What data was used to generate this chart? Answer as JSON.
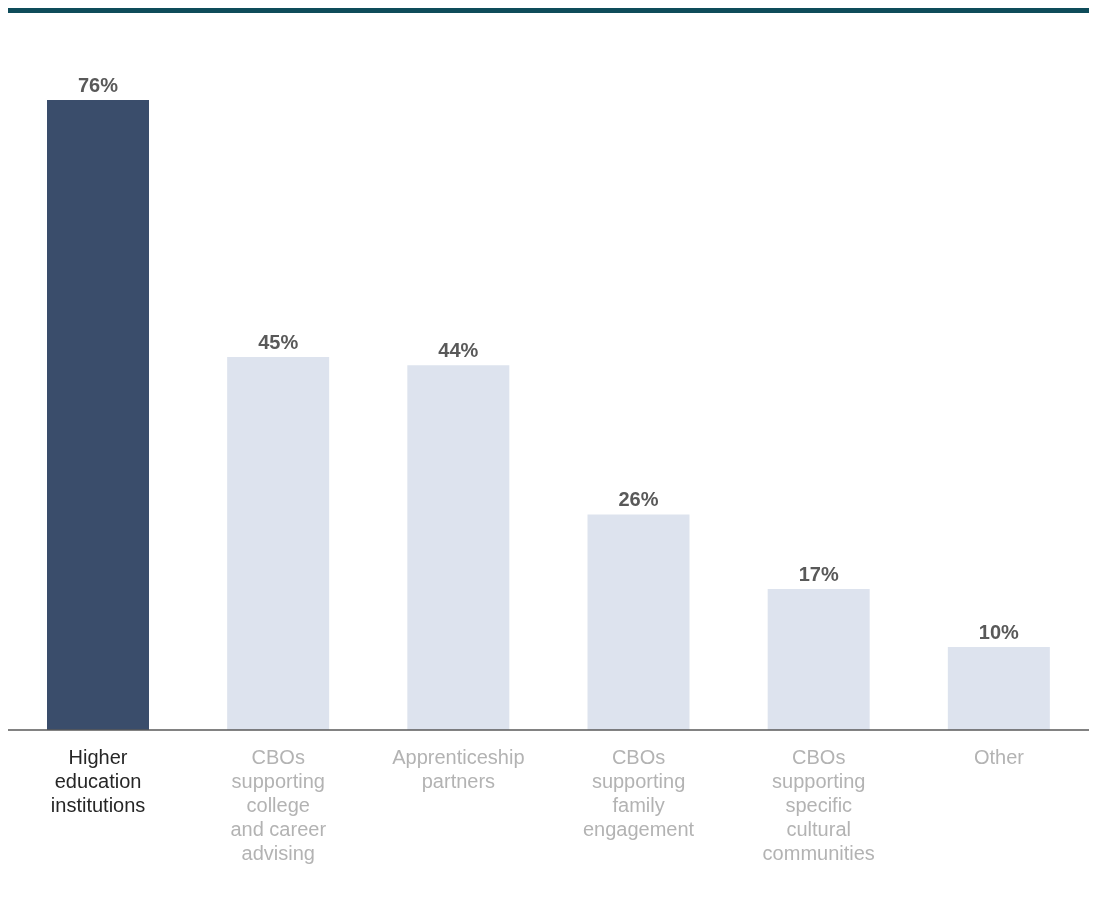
{
  "chart_data": {
    "type": "bar",
    "categories": [
      "Higher education institutions",
      "CBOs supporting college and career advising",
      "Apprenticeship partners",
      "CBOs supporting family engagement",
      "CBOs supporting specific cultural communities",
      "Other"
    ],
    "values": [
      76,
      45,
      44,
      26,
      17,
      10
    ],
    "value_labels": [
      "76%",
      "45%",
      "44%",
      "26%",
      "17%",
      "10%"
    ],
    "colors": [
      "#3a4d6b",
      "#dde3ee",
      "#dde3ee",
      "#dde3ee",
      "#dde3ee",
      "#dde3ee"
    ],
    "grid": false,
    "legend": false
  }
}
